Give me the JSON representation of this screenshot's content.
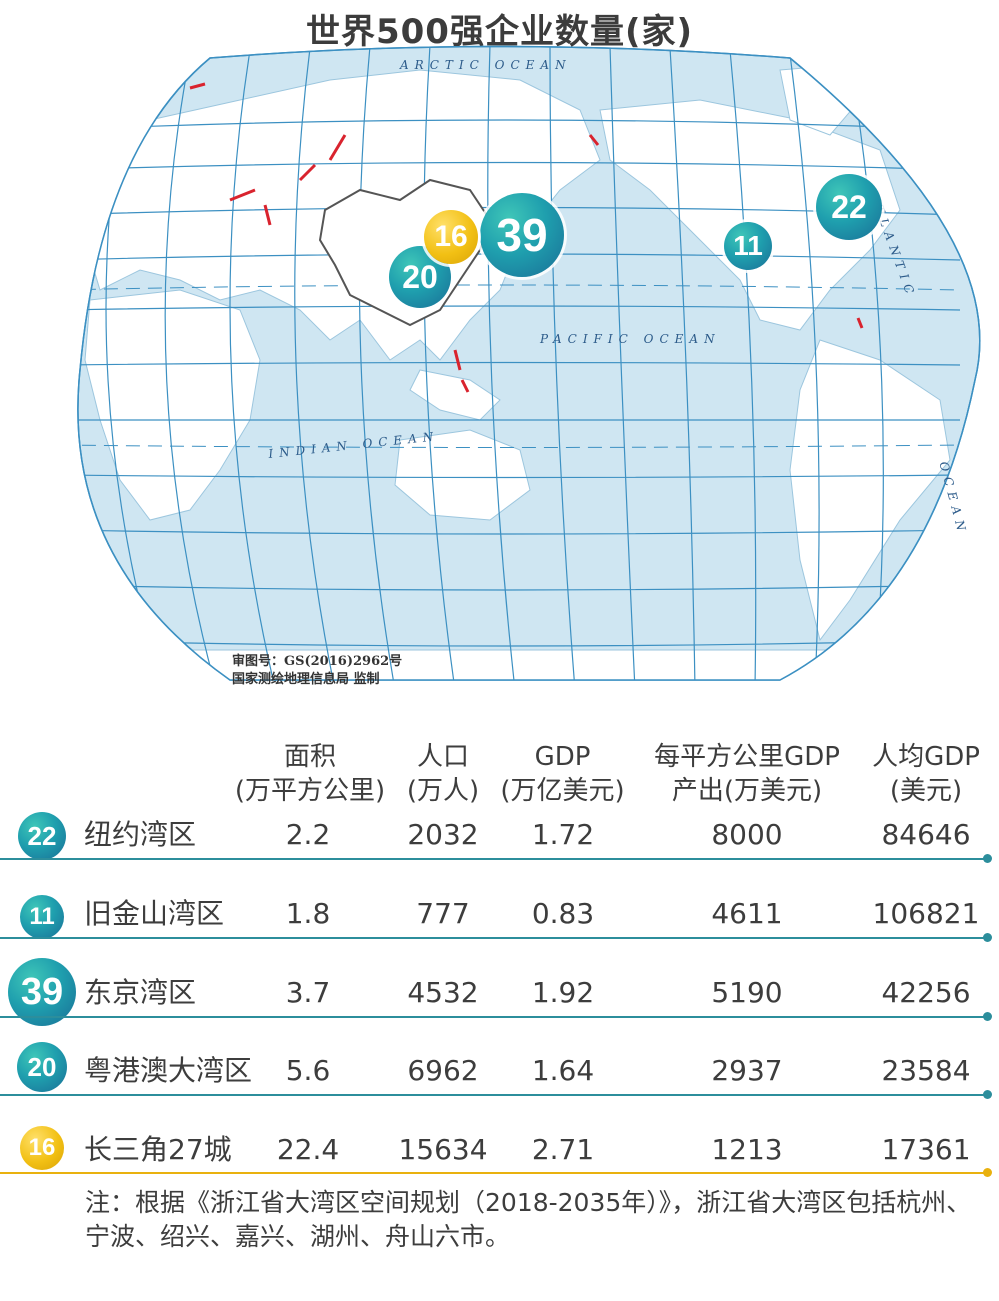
{
  "title": "世界500强企业数量(家)",
  "map": {
    "ocean_labels": {
      "arctic": "ARCTIC OCEAN",
      "pacific": "PACIFIC OCEAN",
      "indian": "INDIAN OCEAN",
      "atlantic": "ATLANTIC",
      "atlantic_ocean": "OCEAN"
    },
    "credit_line1": "审图号：GS(2016)2962号",
    "credit_line2": "国家测绘地理信息局 监制",
    "bubbles": {
      "ny": "22",
      "sf": "11",
      "tokyo": "39",
      "gba": "20",
      "yrd": "16"
    },
    "colors": {
      "ocean": "#cfe6f2",
      "land": "#ffffff",
      "grid": "#3c90c2",
      "teal": "#1f9fae",
      "gold": "#f2c014"
    }
  },
  "table": {
    "headers": [
      {
        "line1": "面积",
        "line2": "(万平方公里)"
      },
      {
        "line1": "人口",
        "line2": "(万人)"
      },
      {
        "line1": "GDP",
        "line2": "(万亿美元)"
      },
      {
        "line1": "每平方公里GDP",
        "line2": "产出(万美元)"
      },
      {
        "line1": "人均GDP",
        "line2": "(美元)"
      }
    ],
    "rows": [
      {
        "badge": "22",
        "name": "纽约湾区",
        "area": "2.2",
        "pop": "2032",
        "gdp": "1.72",
        "gdp_per_km": "8000",
        "gdp_per_cap": "84646",
        "color": "teal"
      },
      {
        "badge": "11",
        "name": "旧金山湾区",
        "area": "1.8",
        "pop": "777",
        "gdp": "0.83",
        "gdp_per_km": "4611",
        "gdp_per_cap": "106821",
        "color": "teal"
      },
      {
        "badge": "39",
        "name": "东京湾区",
        "area": "3.7",
        "pop": "4532",
        "gdp": "1.92",
        "gdp_per_km": "5190",
        "gdp_per_cap": "42256",
        "color": "teal"
      },
      {
        "badge": "20",
        "name": "粤港澳大湾区",
        "area": "5.6",
        "pop": "6962",
        "gdp": "1.64",
        "gdp_per_km": "2937",
        "gdp_per_cap": "23584",
        "color": "teal"
      },
      {
        "badge": "16",
        "name": "长三角27城",
        "area": "22.4",
        "pop": "15634",
        "gdp": "2.71",
        "gdp_per_km": "1213",
        "gdp_per_cap": "17361",
        "color": "gold"
      }
    ]
  },
  "note": "注：根据《浙江省大湾区空间规划（2018-2035年）》，浙江省大湾区包括杭州、宁波、绍兴、嘉兴、湖州、舟山六市。"
}
